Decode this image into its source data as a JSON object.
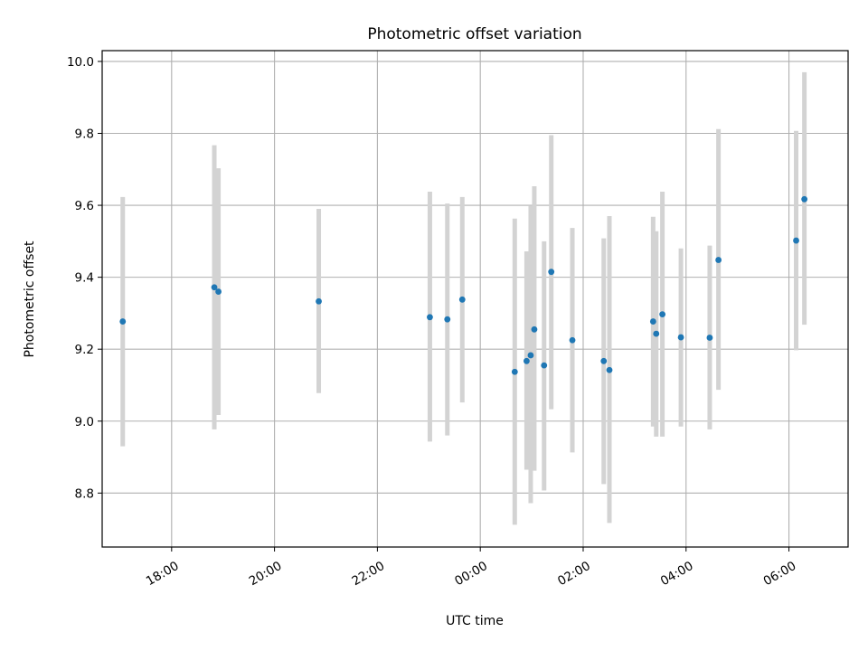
{
  "chart_data": {
    "type": "scatter",
    "title": "Photometric offset variation",
    "xlabel": "UTC time",
    "ylabel": "Photometric offset",
    "grid": true,
    "xlim": [
      16.65,
      31.15
    ],
    "ylim": [
      8.65,
      10.03
    ],
    "x_ticks": [
      {
        "value": 18,
        "label": "18:00"
      },
      {
        "value": 20,
        "label": "20:00"
      },
      {
        "value": 22,
        "label": "22:00"
      },
      {
        "value": 24,
        "label": "00:00"
      },
      {
        "value": 26,
        "label": "02:00"
      },
      {
        "value": 28,
        "label": "04:00"
      },
      {
        "value": 30,
        "label": "06:00"
      }
    ],
    "y_ticks": [
      {
        "value": 8.8,
        "label": "8.8"
      },
      {
        "value": 9.0,
        "label": "9.0"
      },
      {
        "value": 9.2,
        "label": "9.2"
      },
      {
        "value": 9.4,
        "label": "9.4"
      },
      {
        "value": 9.6,
        "label": "9.6"
      },
      {
        "value": 9.8,
        "label": "9.8"
      },
      {
        "value": 10.0,
        "label": "10.0"
      }
    ],
    "series": [
      {
        "name": "offset",
        "marker_color": "#1f77b4",
        "errorbar_color": "#d3d3d3",
        "points": [
          {
            "x": 17.05,
            "y": 9.277,
            "lo": 8.93,
            "hi": 9.623
          },
          {
            "x": 18.83,
            "y": 9.372,
            "lo": 8.977,
            "hi": 9.767
          },
          {
            "x": 18.91,
            "y": 9.36,
            "lo": 9.017,
            "hi": 9.703
          },
          {
            "x": 20.86,
            "y": 9.333,
            "lo": 9.078,
            "hi": 9.59
          },
          {
            "x": 23.02,
            "y": 9.289,
            "lo": 8.943,
            "hi": 9.638
          },
          {
            "x": 23.36,
            "y": 9.283,
            "lo": 8.96,
            "hi": 9.605
          },
          {
            "x": 23.65,
            "y": 9.338,
            "lo": 9.052,
            "hi": 9.623
          },
          {
            "x": 24.67,
            "y": 9.137,
            "lo": 8.712,
            "hi": 9.563
          },
          {
            "x": 24.9,
            "y": 9.167,
            "lo": 8.865,
            "hi": 9.472
          },
          {
            "x": 24.98,
            "y": 9.183,
            "lo": 8.772,
            "hi": 9.598
          },
          {
            "x": 25.05,
            "y": 9.255,
            "lo": 8.862,
            "hi": 9.653
          },
          {
            "x": 25.24,
            "y": 9.155,
            "lo": 8.807,
            "hi": 9.5
          },
          {
            "x": 25.38,
            "y": 9.415,
            "lo": 9.033,
            "hi": 9.795
          },
          {
            "x": 25.79,
            "y": 9.225,
            "lo": 8.913,
            "hi": 9.537
          },
          {
            "x": 26.4,
            "y": 9.167,
            "lo": 8.825,
            "hi": 9.508
          },
          {
            "x": 26.51,
            "y": 9.142,
            "lo": 8.717,
            "hi": 9.57
          },
          {
            "x": 27.36,
            "y": 9.277,
            "lo": 8.985,
            "hi": 9.568
          },
          {
            "x": 27.42,
            "y": 9.243,
            "lo": 8.957,
            "hi": 9.528
          },
          {
            "x": 27.54,
            "y": 9.297,
            "lo": 8.957,
            "hi": 9.638
          },
          {
            "x": 27.9,
            "y": 9.233,
            "lo": 8.985,
            "hi": 9.48
          },
          {
            "x": 28.46,
            "y": 9.232,
            "lo": 8.977,
            "hi": 9.488
          },
          {
            "x": 28.63,
            "y": 9.448,
            "lo": 9.087,
            "hi": 9.812
          },
          {
            "x": 30.14,
            "y": 9.502,
            "lo": 9.197,
            "hi": 9.807
          },
          {
            "x": 30.3,
            "y": 9.617,
            "lo": 9.268,
            "hi": 9.97
          }
        ]
      }
    ]
  }
}
